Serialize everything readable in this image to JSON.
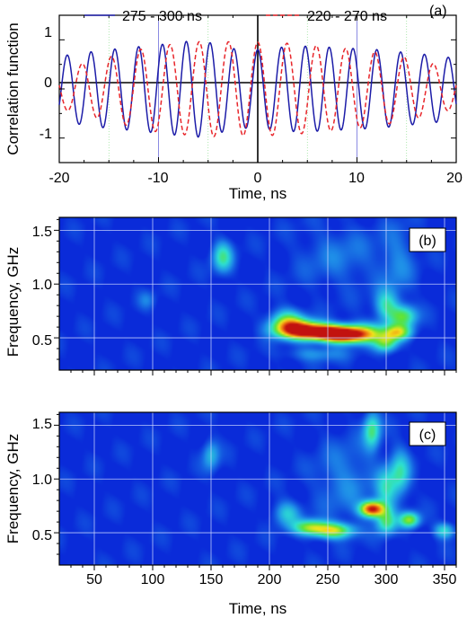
{
  "chart_data": [
    {
      "panel": "(a)",
      "type": "line",
      "xlabel": "Time, ns",
      "ylabel": "Correlation function",
      "xlim": [
        -20,
        20
      ],
      "ylim": [
        -1.5,
        1.5
      ],
      "xticks": [
        "-20",
        "-10",
        "0",
        "10",
        "20"
      ],
      "yticks": [
        "-1",
        "0",
        "1"
      ],
      "legend_position": "top",
      "series": [
        {
          "name": "275 - 300 ns",
          "color": "#1c1ca8",
          "style": "solid",
          "period_ns": 2.4,
          "x": [
            -20,
            -19,
            -18,
            -17,
            -16,
            -15,
            -14,
            -13,
            -12,
            -11,
            -10,
            -9,
            -8,
            -7,
            -6,
            -5,
            -4,
            -3,
            -2,
            -1,
            0,
            1,
            2,
            3,
            4,
            5,
            6,
            7,
            8,
            9,
            10,
            11,
            12,
            13,
            14,
            15,
            16,
            17,
            18,
            19,
            20
          ],
          "amplitude": [
            0.65,
            0.7,
            0.72,
            0.75,
            0.78,
            0.8,
            0.82,
            0.84,
            0.86,
            0.88,
            0.9,
            0.92,
            0.95,
            0.97,
            0.98,
            0.95,
            0.9,
            0.85,
            0.8,
            0.8,
            0.8,
            0.82,
            0.84,
            0.86,
            0.87,
            0.87,
            0.86,
            0.85,
            0.84,
            0.83,
            0.82,
            0.81,
            0.8,
            0.78,
            0.76,
            0.74,
            0.72,
            0.7,
            0.68,
            0.65,
            0.62
          ]
        },
        {
          "name": "220 - 270 ns",
          "color": "#e8262b",
          "style": "dashed",
          "period_ns": 2.95,
          "x": [
            -20,
            -19,
            -18,
            -17,
            -16,
            -15,
            -14,
            -13,
            -12,
            -11,
            -10,
            -9,
            -8,
            -7,
            -6,
            -5,
            -4,
            -3,
            -2,
            -1,
            0,
            1,
            2,
            3,
            4,
            5,
            6,
            7,
            8,
            9,
            10,
            11,
            12,
            13,
            14,
            15,
            16,
            17,
            18,
            19,
            20
          ],
          "amplitude": [
            0.4,
            0.45,
            0.5,
            0.55,
            0.6,
            0.65,
            0.7,
            0.75,
            0.8,
            0.84,
            0.88,
            0.9,
            0.92,
            0.94,
            0.96,
            0.97,
            0.97,
            0.96,
            0.95,
            0.95,
            0.95,
            0.95,
            0.94,
            0.93,
            0.92,
            0.9,
            0.88,
            0.86,
            0.84,
            0.82,
            0.8,
            0.78,
            0.75,
            0.72,
            0.68,
            0.64,
            0.6,
            0.55,
            0.5,
            0.45,
            0.4
          ]
        }
      ]
    },
    {
      "panel": "(b)",
      "type": "heatmap",
      "xlabel": "",
      "ylabel": "Frequency, GHz",
      "xlim": [
        20,
        360
      ],
      "ylim": [
        0.2,
        1.62
      ],
      "yticks": [
        "0.5",
        "1.0",
        "1.5"
      ],
      "colormap": [
        "#0a2bd9",
        "#1f8fe8",
        "#2de0d2",
        "#5be33a",
        "#f2e41c",
        "#f07a12",
        "#c2120f"
      ],
      "blobs": [
        {
          "t": 250,
          "f": 0.55,
          "st": 18,
          "sf": 0.05,
          "a": 1.0
        },
        {
          "t": 225,
          "f": 0.58,
          "st": 14,
          "sf": 0.06,
          "a": 0.75
        },
        {
          "t": 265,
          "f": 0.52,
          "st": 14,
          "sf": 0.05,
          "a": 0.7
        },
        {
          "t": 215,
          "f": 0.65,
          "st": 10,
          "sf": 0.08,
          "a": 0.45
        },
        {
          "t": 285,
          "f": 0.55,
          "st": 12,
          "sf": 0.07,
          "a": 0.35
        },
        {
          "t": 310,
          "f": 0.55,
          "st": 8,
          "sf": 0.05,
          "a": 0.55
        },
        {
          "t": 315,
          "f": 0.7,
          "st": 8,
          "sf": 0.07,
          "a": 0.45
        },
        {
          "t": 300,
          "f": 0.45,
          "st": 7,
          "sf": 0.06,
          "a": 0.45
        },
        {
          "t": 300,
          "f": 0.8,
          "st": 7,
          "sf": 0.1,
          "a": 0.35
        },
        {
          "t": 160,
          "f": 1.25,
          "st": 6,
          "sf": 0.1,
          "a": 0.38
        },
        {
          "t": 240,
          "f": 0.35,
          "st": 18,
          "sf": 0.05,
          "a": 0.18
        },
        {
          "t": 95,
          "f": 0.85,
          "st": 5,
          "sf": 0.06,
          "a": 0.12
        },
        {
          "t": 260,
          "f": 1.25,
          "st": 25,
          "sf": 0.2,
          "a": 0.12
        },
        {
          "t": 310,
          "f": 1.2,
          "st": 10,
          "sf": 0.25,
          "a": 0.14
        }
      ]
    },
    {
      "panel": "(c)",
      "type": "heatmap",
      "xlabel": "Time, ns",
      "ylabel": "Frequency, GHz",
      "xlim": [
        20,
        360
      ],
      "ylim": [
        0.2,
        1.62
      ],
      "xticks": [
        "50",
        "100",
        "150",
        "200",
        "250",
        "300",
        "350"
      ],
      "yticks": [
        "0.5",
        "1.0",
        "1.5"
      ],
      "colormap": [
        "#0a2bd9",
        "#1f8fe8",
        "#2de0d2",
        "#5be33a",
        "#f2e41c",
        "#f07a12",
        "#c2120f"
      ],
      "blobs": [
        {
          "t": 288,
          "f": 0.72,
          "st": 7,
          "sf": 0.05,
          "a": 1.0
        },
        {
          "t": 255,
          "f": 0.52,
          "st": 12,
          "sf": 0.05,
          "a": 0.6
        },
        {
          "t": 235,
          "f": 0.55,
          "st": 10,
          "sf": 0.05,
          "a": 0.5
        },
        {
          "t": 320,
          "f": 0.62,
          "st": 6,
          "sf": 0.05,
          "a": 0.55
        },
        {
          "t": 300,
          "f": 0.6,
          "st": 6,
          "sf": 0.08,
          "a": 0.4
        },
        {
          "t": 288,
          "f": 1.45,
          "st": 5,
          "sf": 0.12,
          "a": 0.42
        },
        {
          "t": 312,
          "f": 1.05,
          "st": 6,
          "sf": 0.15,
          "a": 0.35
        },
        {
          "t": 300,
          "f": 0.9,
          "st": 6,
          "sf": 0.15,
          "a": 0.3
        },
        {
          "t": 350,
          "f": 0.52,
          "st": 6,
          "sf": 0.05,
          "a": 0.35
        },
        {
          "t": 215,
          "f": 0.68,
          "st": 8,
          "sf": 0.08,
          "a": 0.28
        },
        {
          "t": 150,
          "f": 1.22,
          "st": 5,
          "sf": 0.1,
          "a": 0.25
        },
        {
          "t": 265,
          "f": 1.0,
          "st": 18,
          "sf": 0.25,
          "a": 0.15
        }
      ]
    }
  ],
  "legend": {
    "series_1": "275 - 300 ns",
    "series_2": "220 - 270 ns"
  },
  "panel_a": {
    "tag": "(a)",
    "ylabel": "Correlation function",
    "xlabel": "Time, ns",
    "xticks": [
      "-20",
      "-10",
      "0",
      "10",
      "20"
    ],
    "yticks": [
      "1",
      "0",
      "-1"
    ]
  },
  "panel_b": {
    "tag": "(b)",
    "ylabel": "Frequency, GHz",
    "yticks": [
      "1.5",
      "1.0",
      "0.5"
    ]
  },
  "panel_c": {
    "tag": "(c)",
    "ylabel": "Frequency, GHz",
    "xlabel": "Time, ns",
    "yticks": [
      "1.5",
      "1.0",
      "0.5"
    ],
    "xticks": [
      "50",
      "100",
      "150",
      "200",
      "250",
      "300",
      "350"
    ]
  }
}
